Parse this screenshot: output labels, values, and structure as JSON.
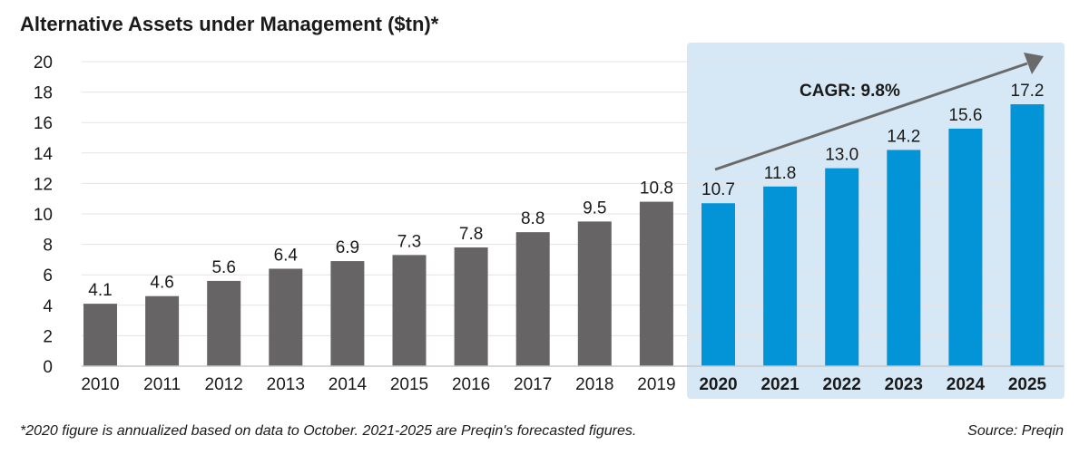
{
  "chart_data": {
    "type": "bar",
    "title": "Alternative Assets under Management ($tn)*",
    "categories": [
      "2010",
      "2011",
      "2012",
      "2013",
      "2014",
      "2015",
      "2016",
      "2017",
      "2018",
      "2019",
      "2020",
      "2021",
      "2022",
      "2023",
      "2024",
      "2025"
    ],
    "values": [
      4.1,
      4.6,
      5.6,
      6.4,
      6.9,
      7.3,
      7.8,
      8.8,
      9.5,
      10.8,
      10.7,
      11.8,
      13.0,
      14.2,
      15.6,
      17.2
    ],
    "value_labels": [
      "4.1",
      "4.6",
      "5.6",
      "6.4",
      "6.9",
      "7.3",
      "7.8",
      "8.8",
      "9.5",
      "10.8",
      "10.7",
      "11.8",
      "13.0",
      "14.2",
      "15.6",
      "17.2"
    ],
    "ylim": [
      0,
      20
    ],
    "yticks": [
      0,
      2,
      4,
      6,
      8,
      10,
      12,
      14,
      16,
      18,
      20
    ],
    "xlabel": "",
    "ylabel": "",
    "grid": true,
    "forecast_start": "2020",
    "annotation": "CAGR: 9.8%",
    "colors": {
      "historical": "#666465",
      "forecast": "#0394d7",
      "forecast_region": "#d6e8f5",
      "grid": "#e3e3e3",
      "axis": "#c8c8c8",
      "arrow": "#6a6a6a",
      "text": "#1a1a1a"
    }
  },
  "footnote": "*2020 figure is annualized based on data to October. 2021-2025 are Preqin's forecasted figures.",
  "source": "Source: Preqin"
}
